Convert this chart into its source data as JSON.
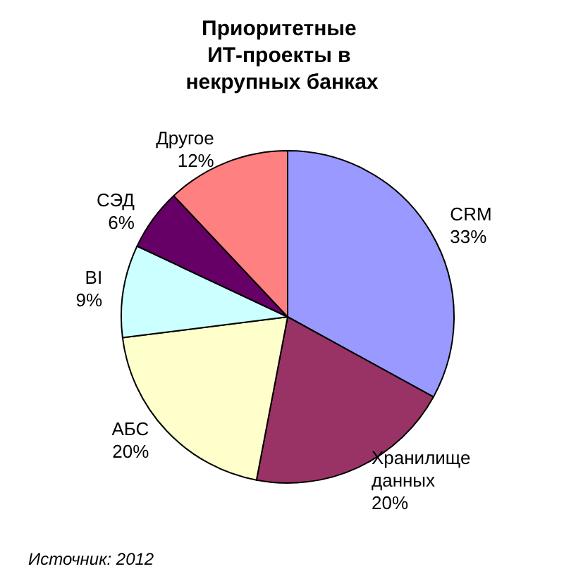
{
  "chart_data": {
    "type": "pie",
    "title": "Приоритетные ИТ-проекты в некрупных банках",
    "categories": [
      "CRM",
      "Хранилище данных",
      "АБС",
      "BI",
      "СЭД",
      "Другое"
    ],
    "values": [
      33,
      20,
      20,
      9,
      6,
      12
    ],
    "value_labels": [
      "33%",
      "20%",
      "20%",
      "9%",
      "6%",
      "12%"
    ],
    "colors": [
      "#9999ff",
      "#993366",
      "#ffffcc",
      "#ccffff",
      "#660066",
      "#ff8080"
    ],
    "legend": false,
    "annotations": [
      "Источник: 2012"
    ]
  }
}
